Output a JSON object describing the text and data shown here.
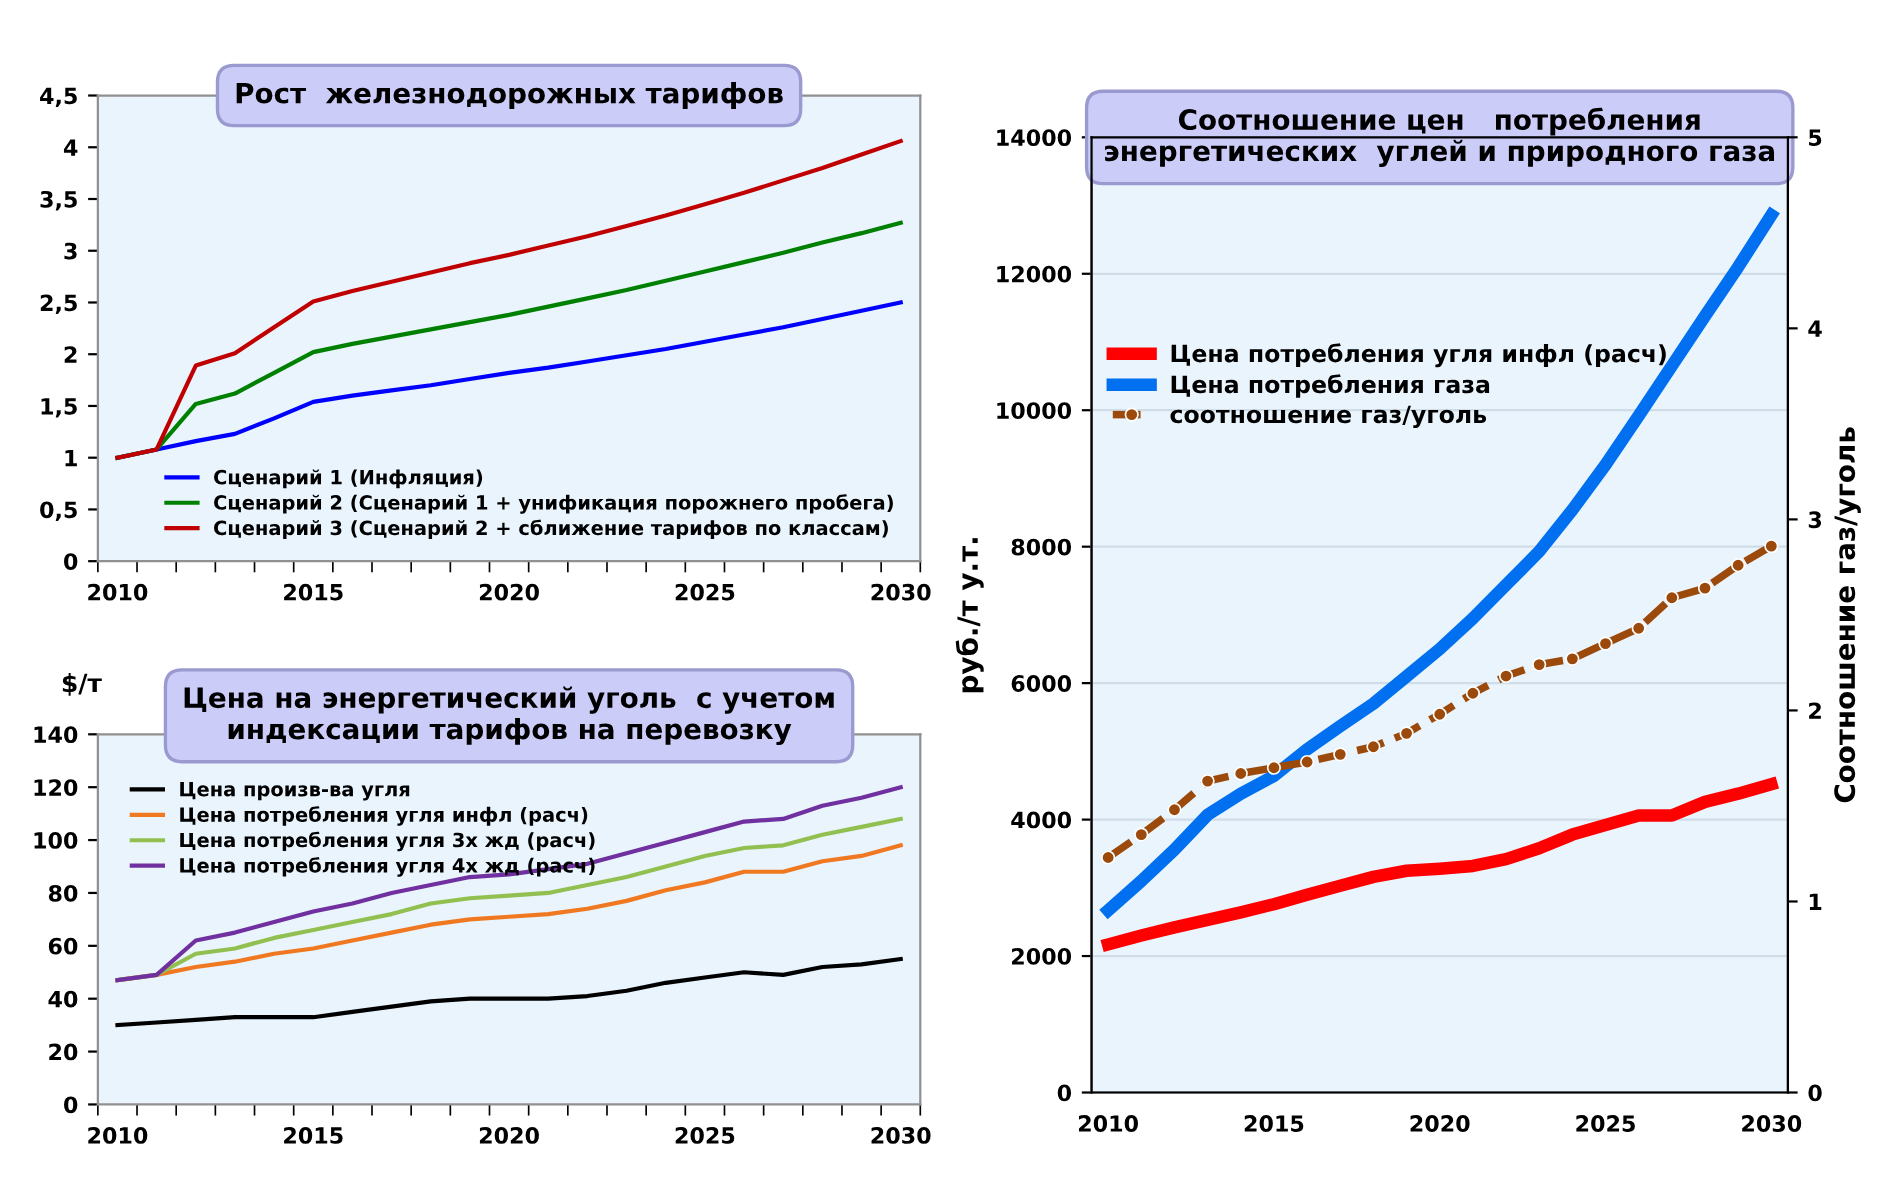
{
  "chart_data": [
    {
      "type": "line",
      "title": "Рост  железнодорожных тарифов",
      "categories": [
        "2010",
        null,
        null,
        null,
        null,
        "2015",
        null,
        null,
        null,
        null,
        "2020",
        null,
        null,
        null,
        null,
        "2025",
        null,
        null,
        null,
        null,
        "2030"
      ],
      "ylim": [
        0,
        4.5
      ],
      "yticks": [
        0,
        {
          "value": 0.5,
          "label": "0,5"
        },
        1,
        {
          "value": 1.5,
          "label": "1,5"
        },
        2,
        {
          "value": 2.5,
          "label": "2,5"
        },
        3,
        {
          "value": 3.5,
          "label": "3,5"
        },
        4,
        {
          "value": 4.5,
          "label": "4,5"
        }
      ],
      "grid": false,
      "legend": "bottom right",
      "line_style": "solid",
      "marker": "none",
      "series": [
        {
          "name": "Сценарий 1 (Инфляция)",
          "color": "#0000ff",
          "values": [
            1,
            1.08,
            1.16,
            1.23,
            1.38,
            1.54,
            1.6,
            1.65,
            1.7,
            1.76,
            1.82,
            1.87,
            1.93,
            1.99,
            2.05,
            2.12,
            2.19,
            2.26,
            2.34,
            2.42,
            2.5
          ]
        },
        {
          "name": "Сценарий 2 (Сценарий 1 + унификация порожнего пробега)",
          "color": "#008000",
          "values": [
            1,
            1.08,
            1.52,
            1.62,
            1.82,
            2.02,
            2.1,
            2.17,
            2.24,
            2.31,
            2.38,
            2.46,
            2.54,
            2.62,
            2.71,
            2.8,
            2.89,
            2.98,
            3.08,
            3.17,
            3.27
          ]
        },
        {
          "name": "Сценарий 3 (Сценарий 2 + сближение тарифов по классам)",
          "color": "#c00000",
          "values": [
            1,
            1.08,
            1.89,
            2.01,
            2.26,
            2.51,
            2.61,
            2.7,
            2.79,
            2.88,
            2.96,
            3.05,
            3.14,
            3.24,
            3.34,
            3.45,
            3.56,
            3.68,
            3.8,
            3.93,
            4.06
          ]
        }
      ]
    },
    {
      "type": "line",
      "title": "Цена на энергетический уголь  с учетом\nиндексации тарифов на перевозку",
      "ylabel": "$/т",
      "categories": [
        "2010",
        null,
        null,
        null,
        null,
        "2015",
        null,
        null,
        null,
        null,
        "2020",
        null,
        null,
        null,
        null,
        "2025",
        null,
        null,
        null,
        null,
        "2030"
      ],
      "ylim": [
        0,
        140
      ],
      "yticks": [
        0,
        20,
        40,
        60,
        80,
        100,
        120,
        140
      ],
      "grid": false,
      "legend": "top left",
      "line_style": "solid",
      "marker": "none",
      "series": [
        {
          "name": "Цена произв-ва угля",
          "color": "#000000",
          "values": [
            30,
            31,
            32,
            33,
            33,
            33,
            35,
            37,
            39,
            40,
            40,
            40,
            41,
            43,
            46,
            48,
            50,
            49,
            52,
            53,
            55
          ]
        },
        {
          "name": "Цена потребления угля инфл (расч)",
          "color": "#f07820",
          "values": [
            47,
            49,
            52,
            54,
            57,
            59,
            62,
            65,
            68,
            70,
            71,
            72,
            74,
            77,
            81,
            84,
            88,
            88,
            92,
            94,
            98
          ]
        },
        {
          "name": "Цена потребления угля 3х жд (расч)",
          "color": "#92c050",
          "values": [
            47,
            49,
            57,
            59,
            63,
            66,
            69,
            72,
            76,
            78,
            79,
            80,
            83,
            86,
            90,
            94,
            97,
            98,
            102,
            105,
            108
          ]
        },
        {
          "name": "Цена потребления угля 4х жд (расч)",
          "color": "#7030a0",
          "values": [
            47,
            49,
            62,
            65,
            69,
            73,
            76,
            80,
            83,
            86,
            87,
            89,
            91,
            95,
            99,
            103,
            107,
            108,
            113,
            116,
            120
          ]
        }
      ]
    },
    {
      "type": "line",
      "title": "Соотношение цен   потребления\nэнергетических  углей и природного газа",
      "ylabel": "руб./т у.т.",
      "y2label": "Соотношение газ/уголь",
      "categories": [
        "2010",
        null,
        null,
        null,
        null,
        "2015",
        null,
        null,
        null,
        null,
        "2020",
        null,
        null,
        null,
        null,
        "2025",
        null,
        null,
        null,
        null,
        "2030"
      ],
      "ylim": [
        0,
        14000
      ],
      "yticks": [
        0,
        2000,
        4000,
        6000,
        8000,
        10000,
        12000,
        14000
      ],
      "y2lim": [
        0,
        5
      ],
      "y2ticks": [
        0,
        1,
        2,
        3,
        4,
        5
      ],
      "grid": "y",
      "legend": "left",
      "series": [
        {
          "name": "Цена потребления угля инфл (расч)",
          "color": "#ff0000",
          "values": [
            2170,
            2300,
            2420,
            2530,
            2640,
            2760,
            2900,
            3030,
            3160,
            3250,
            3280,
            3320,
            3420,
            3580,
            3780,
            3920,
            4060,
            4060,
            4260,
            4380,
            4520
          ]
        },
        {
          "name": "Цена потребления газа",
          "color": "#0070f0",
          "values": [
            2670,
            3100,
            3560,
            4070,
            4380,
            4640,
            5030,
            5370,
            5700,
            6100,
            6500,
            6950,
            7440,
            7930,
            8540,
            9200,
            9920,
            10650,
            11380,
            12100,
            12860
          ]
        },
        {
          "name": "соотношение газ/уголь",
          "color": "#9c4a0c",
          "axis": "y2",
          "line_style": "dashed",
          "marker": "circle",
          "values": [
            1.23,
            1.35,
            1.48,
            1.63,
            1.67,
            1.7,
            1.73,
            1.77,
            1.81,
            1.88,
            1.98,
            2.09,
            2.18,
            2.24,
            2.27,
            2.35,
            2.43,
            2.59,
            2.64,
            2.76,
            2.86
          ]
        }
      ]
    }
  ]
}
